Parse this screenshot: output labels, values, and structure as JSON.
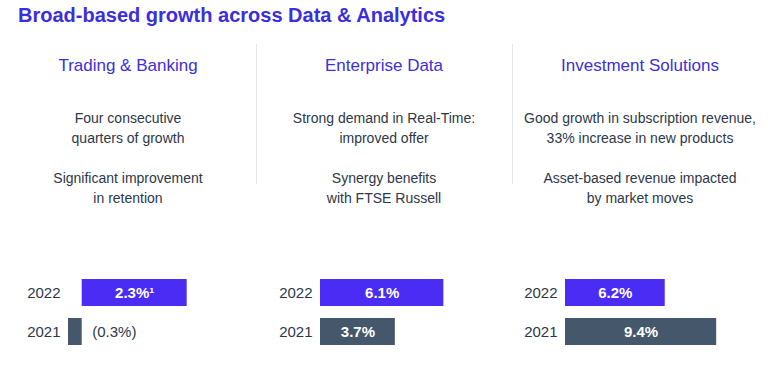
{
  "title": "Broad-based growth across Data & Analytics",
  "chart_data": [
    {
      "type": "bar",
      "title": "Trading & Banking",
      "annotations": [
        "Four consecutive\nquarters of growth",
        "Significant improvement\nin retention"
      ],
      "categories": [
        "2022",
        "2021"
      ],
      "values": [
        2.3,
        -0.3
      ],
      "value_labels": [
        "2.3%¹",
        "(0.3%)"
      ],
      "colors": [
        "#4a2cf5",
        "#44576b"
      ],
      "orientation": "horizontal",
      "data_labels": true,
      "tick_labels": "y",
      "xlim": [
        -0.3,
        3.6
      ]
    },
    {
      "type": "bar",
      "title": "Enterprise Data",
      "annotations": [
        "Strong demand in Real-Time:\nimproved offer",
        "Synergy benefits\nwith FTSE Russell"
      ],
      "categories": [
        "2022",
        "2021"
      ],
      "values": [
        6.1,
        3.7
      ],
      "value_labels": [
        "6.1%",
        "3.7%"
      ],
      "colors": [
        "#4a2cf5",
        "#44576b"
      ],
      "orientation": "horizontal",
      "data_labels": true,
      "tick_labels": "y",
      "xlim": [
        0,
        9
      ]
    },
    {
      "type": "bar",
      "title": "Investment Solutions",
      "annotations": [
        "Good growth in subscription revenue,\n33% increase in new products",
        "Asset-based revenue impacted\nby market moves"
      ],
      "categories": [
        "2022",
        "2021"
      ],
      "values": [
        6.2,
        9.4
      ],
      "value_labels": [
        "6.2%",
        "9.4%"
      ],
      "colors": [
        "#4a2cf5",
        "#44576b"
      ],
      "orientation": "horizontal",
      "data_labels": true,
      "tick_labels": "y",
      "xlim": [
        0,
        12
      ]
    }
  ]
}
